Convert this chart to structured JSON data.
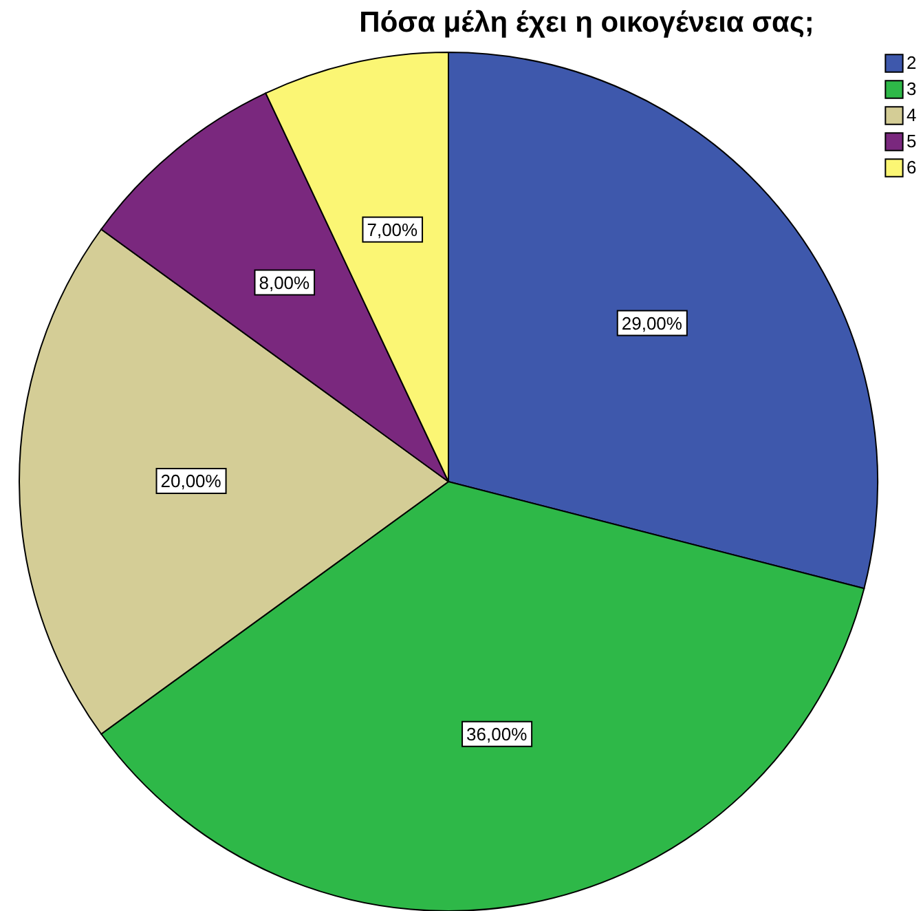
{
  "chart_data": {
    "type": "pie",
    "title": "Πόσα μέλη έχει η οικογένεια σας;",
    "categories": [
      "2",
      "3",
      "4",
      "5",
      "6"
    ],
    "values": [
      29,
      36,
      20,
      8,
      7
    ],
    "value_labels": [
      "29,00%",
      "36,00%",
      "20,00%",
      "8,00%",
      "7,00%"
    ],
    "colors": [
      "#3e58ac",
      "#2eb848",
      "#d4cd96",
      "#7a287e",
      "#fbf674"
    ],
    "legend": "top right"
  }
}
